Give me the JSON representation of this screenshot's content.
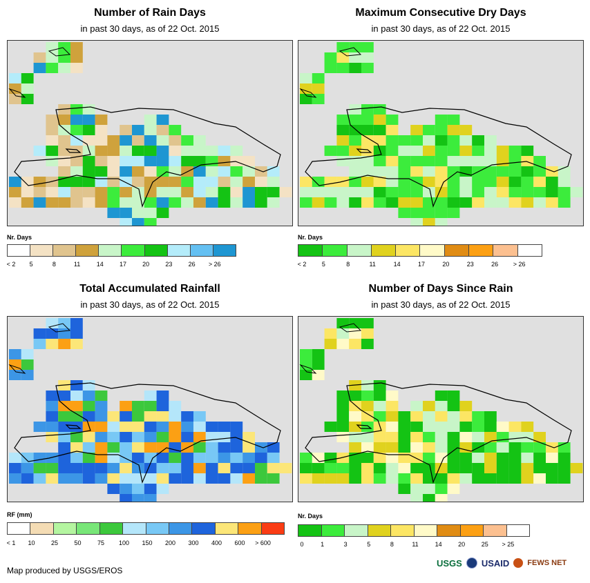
{
  "panels": [
    {
      "id": "rain-days",
      "title": "Number of Rain Days",
      "subtitle": "in past 30 days, as of 22 Oct. 2015",
      "legend_title": "Nr. Days",
      "legend_labels": [
        "< 2",
        "5",
        "8",
        "11",
        "14",
        "17",
        "20",
        "23",
        "26",
        "> 26"
      ],
      "legend_colors": [
        "#ffffff",
        "#f4e2c4",
        "#e0c48e",
        "#cfa23c",
        "#c8f5c8",
        "#3cec3c",
        "#14c314",
        "#b4ecfa",
        "#64c0f2",
        "#1e96d2"
      ]
    },
    {
      "id": "max-dry-days",
      "title": "Maximum Consecutive Dry Days",
      "subtitle": "in past 30 days, as of 22 Oct. 2015",
      "legend_title": "Nr. Days",
      "legend_labels": [
        "< 2",
        "5",
        "8",
        "11",
        "14",
        "17",
        "20",
        "23",
        "26",
        "> 26"
      ],
      "legend_colors": [
        "#14c314",
        "#3cec3c",
        "#c8f5c8",
        "#e0d21e",
        "#fce664",
        "#fffac8",
        "#e08c14",
        "#fca014",
        "#fcc090",
        "#ffffff"
      ]
    },
    {
      "id": "total-rainfall",
      "title": "Total Accumulated Rainfall",
      "subtitle": "in past 30 days, as of 22 Oct. 2015",
      "legend_title": "RF (mm)",
      "legend_labels": [
        "< 1",
        "10",
        "25",
        "50",
        "75",
        "100",
        "150",
        "200",
        "300",
        "400",
        "600",
        "> 600"
      ],
      "legend_colors": [
        "#ffffff",
        "#f4dcb4",
        "#b4f5a0",
        "#78e678",
        "#3cc83c",
        "#b4e6fa",
        "#78c8f5",
        "#3c96e6",
        "#1e64dc",
        "#fce678",
        "#fca014",
        "#fa3c14"
      ]
    },
    {
      "id": "days-since-rain",
      "title": "Number of Days Since Rain",
      "subtitle": "in past 30 days, as of 22 Oct. 2015",
      "legend_title": "Nr. Days",
      "legend_labels": [
        "0",
        "1",
        "3",
        "5",
        "8",
        "11",
        "14",
        "20",
        "25",
        "> 25"
      ],
      "legend_colors": [
        "#14c314",
        "#3cec3c",
        "#c8f5c8",
        "#e0d21e",
        "#fce664",
        "#fffac8",
        "#e08c14",
        "#fca014",
        "#fcc090",
        "#ffffff"
      ]
    }
  ],
  "footer": "Map produced by USGS/EROS",
  "logos": [
    "USGS",
    "USAID",
    "FEWS NET"
  ]
}
